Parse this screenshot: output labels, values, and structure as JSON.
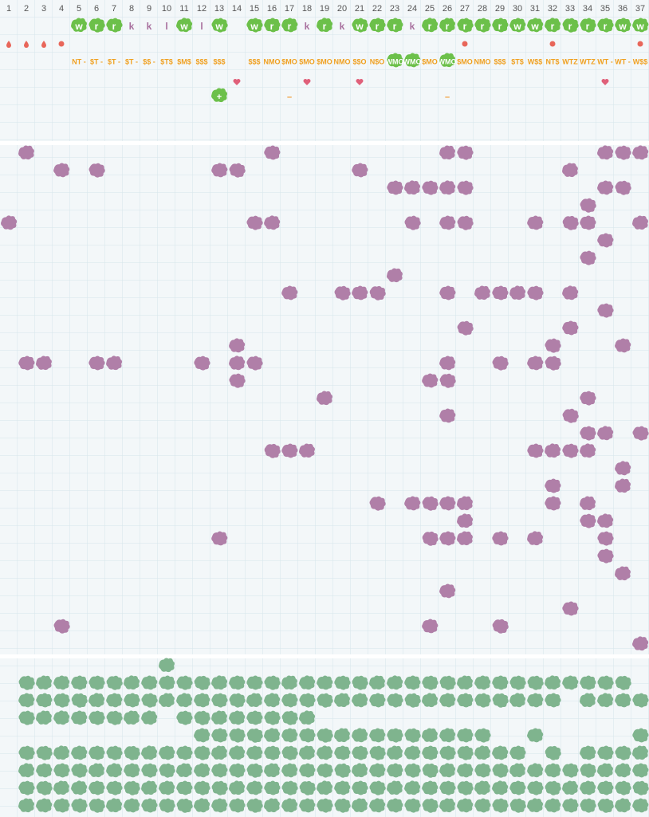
{
  "columns": [
    "1",
    "2",
    "3",
    "4",
    "5",
    "6",
    "7",
    "8",
    "9",
    "10",
    "11",
    "12",
    "13",
    "14",
    "15",
    "16",
    "17",
    "18",
    "19",
    "20",
    "21",
    "22",
    "23",
    "24",
    "25",
    "26",
    "27",
    "28",
    "29",
    "30",
    "31",
    "32",
    "33",
    "34",
    "35",
    "36",
    "37"
  ],
  "markers": [
    {
      "col": 5,
      "text": "w",
      "style": "badge"
    },
    {
      "col": 6,
      "text": "r",
      "style": "badge"
    },
    {
      "col": 7,
      "text": "r",
      "style": "badge"
    },
    {
      "col": 8,
      "text": "k",
      "style": "plain"
    },
    {
      "col": 9,
      "text": "k",
      "style": "plain"
    },
    {
      "col": 10,
      "text": "l",
      "style": "plain"
    },
    {
      "col": 11,
      "text": "w",
      "style": "badge"
    },
    {
      "col": 12,
      "text": "l",
      "style": "plain"
    },
    {
      "col": 13,
      "text": "w",
      "style": "badge"
    },
    {
      "col": 15,
      "text": "w",
      "style": "badge"
    },
    {
      "col": 16,
      "text": "r",
      "style": "badge"
    },
    {
      "col": 17,
      "text": "r",
      "style": "badge"
    },
    {
      "col": 18,
      "text": "k",
      "style": "plain"
    },
    {
      "col": 19,
      "text": "r",
      "style": "badge"
    },
    {
      "col": 20,
      "text": "k",
      "style": "plain"
    },
    {
      "col": 21,
      "text": "w",
      "style": "badge"
    },
    {
      "col": 22,
      "text": "r",
      "style": "badge"
    },
    {
      "col": 23,
      "text": "r",
      "style": "badge"
    },
    {
      "col": 24,
      "text": "k",
      "style": "plain"
    },
    {
      "col": 25,
      "text": "r",
      "style": "badge"
    },
    {
      "col": 26,
      "text": "r",
      "style": "badge"
    },
    {
      "col": 27,
      "text": "r",
      "style": "badge"
    },
    {
      "col": 28,
      "text": "r",
      "style": "badge"
    },
    {
      "col": 29,
      "text": "r",
      "style": "badge"
    },
    {
      "col": 30,
      "text": "w",
      "style": "badge"
    },
    {
      "col": 31,
      "text": "w",
      "style": "badge"
    },
    {
      "col": 32,
      "text": "r",
      "style": "badge"
    },
    {
      "col": 33,
      "text": "r",
      "style": "badge"
    },
    {
      "col": 34,
      "text": "r",
      "style": "badge"
    },
    {
      "col": 35,
      "text": "r",
      "style": "badge"
    },
    {
      "col": 36,
      "text": "w",
      "style": "badge"
    },
    {
      "col": 37,
      "text": "w",
      "style": "badge"
    }
  ],
  "icons": [
    {
      "col": 1,
      "kind": "drop"
    },
    {
      "col": 2,
      "kind": "drop"
    },
    {
      "col": 3,
      "kind": "drop"
    },
    {
      "col": 4,
      "kind": "dot"
    },
    {
      "col": 27,
      "kind": "dot"
    },
    {
      "col": 32,
      "kind": "dot"
    },
    {
      "col": 37,
      "kind": "dot"
    }
  ],
  "codes": [
    {
      "col": 5,
      "text": "NT -",
      "style": "plain"
    },
    {
      "col": 6,
      "text": "$T -",
      "style": "plain"
    },
    {
      "col": 7,
      "text": "$T -",
      "style": "plain"
    },
    {
      "col": 8,
      "text": "$T -",
      "style": "plain"
    },
    {
      "col": 9,
      "text": "$$ -",
      "style": "plain"
    },
    {
      "col": 10,
      "text": "$T$",
      "style": "plain"
    },
    {
      "col": 11,
      "text": "$M$",
      "style": "plain"
    },
    {
      "col": 12,
      "text": "$$$",
      "style": "plain"
    },
    {
      "col": 13,
      "text": "$$$",
      "style": "plain"
    },
    {
      "col": 15,
      "text": "$$$",
      "style": "plain"
    },
    {
      "col": 16,
      "text": "NMO",
      "style": "plain"
    },
    {
      "col": 17,
      "text": "$MO",
      "style": "plain"
    },
    {
      "col": 18,
      "text": "$MO",
      "style": "plain"
    },
    {
      "col": 19,
      "text": "$MO",
      "style": "plain"
    },
    {
      "col": 20,
      "text": "NMO",
      "style": "plain"
    },
    {
      "col": 21,
      "text": "$$O",
      "style": "plain"
    },
    {
      "col": 22,
      "text": "N$O",
      "style": "plain"
    },
    {
      "col": 23,
      "text": "WMO",
      "style": "badge"
    },
    {
      "col": 24,
      "text": "WMO",
      "style": "badge"
    },
    {
      "col": 25,
      "text": "$MO",
      "style": "plain"
    },
    {
      "col": 26,
      "text": "WMO",
      "style": "badge"
    },
    {
      "col": 27,
      "text": "$MO",
      "style": "plain"
    },
    {
      "col": 28,
      "text": "NMO",
      "style": "plain"
    },
    {
      "col": 29,
      "text": "$$$",
      "style": "plain"
    },
    {
      "col": 30,
      "text": "$T$",
      "style": "plain"
    },
    {
      "col": 31,
      "text": "W$$",
      "style": "plain"
    },
    {
      "col": 32,
      "text": "NT$",
      "style": "plain"
    },
    {
      "col": 33,
      "text": "WTZ",
      "style": "plain"
    },
    {
      "col": 34,
      "text": "WTZ",
      "style": "plain"
    },
    {
      "col": 35,
      "text": "WT -",
      "style": "plain"
    },
    {
      "col": 36,
      "text": "WT -",
      "style": "plain"
    },
    {
      "col": 37,
      "text": "W$$",
      "style": "plain"
    }
  ],
  "hearts": [
    14,
    18,
    21,
    35
  ],
  "signs": [
    {
      "col": 13,
      "text": "+",
      "style": "badge"
    },
    {
      "col": 17,
      "text": "–",
      "style": "plain"
    },
    {
      "col": 26,
      "text": "–",
      "style": "plain"
    }
  ],
  "purple_rows": [
    [
      2,
      16,
      26,
      27,
      35,
      36,
      37
    ],
    [
      4,
      6,
      13,
      14,
      21,
      33
    ],
    [
      23,
      24,
      25,
      26,
      27,
      35,
      36
    ],
    [
      34
    ],
    [
      1,
      15,
      16,
      24,
      26,
      27,
      31,
      33,
      34,
      37
    ],
    [
      35
    ],
    [
      34
    ],
    [
      23
    ],
    [
      17,
      20,
      21,
      22,
      26,
      28,
      29,
      30,
      31,
      33
    ],
    [
      35
    ],
    [
      27,
      33
    ],
    [
      14,
      32,
      36
    ],
    [
      2,
      3,
      6,
      7,
      12,
      14,
      15,
      26,
      29,
      31,
      32
    ],
    [
      14,
      25,
      26
    ],
    [
      19,
      34
    ],
    [
      26,
      33
    ],
    [
      34,
      35,
      37
    ],
    [
      16,
      17,
      18,
      31,
      32,
      33,
      34
    ],
    [
      36
    ],
    [
      32,
      36
    ],
    [
      22,
      24,
      25,
      26,
      27,
      32,
      34
    ],
    [
      27,
      34,
      35
    ],
    [
      13,
      25,
      26,
      27,
      29,
      31,
      35
    ],
    [
      35
    ],
    [
      36
    ],
    [
      26
    ],
    [
      33
    ],
    [
      4,
      25,
      29
    ],
    [
      37
    ]
  ],
  "green_rows": [
    [
      [
        10,
        10
      ]
    ],
    [
      [
        2,
        36
      ]
    ],
    [
      [
        2,
        32
      ],
      [
        34,
        37
      ]
    ],
    [
      [
        2,
        9
      ],
      [
        11,
        18
      ]
    ],
    [
      [
        12,
        28
      ],
      [
        31,
        31
      ],
      [
        37,
        37
      ]
    ],
    [
      [
        2,
        30
      ],
      [
        32,
        32
      ],
      [
        34,
        37
      ]
    ],
    [
      [
        2,
        37
      ]
    ],
    [
      [
        2,
        37
      ]
    ],
    [
      [
        2,
        37
      ]
    ]
  ]
}
